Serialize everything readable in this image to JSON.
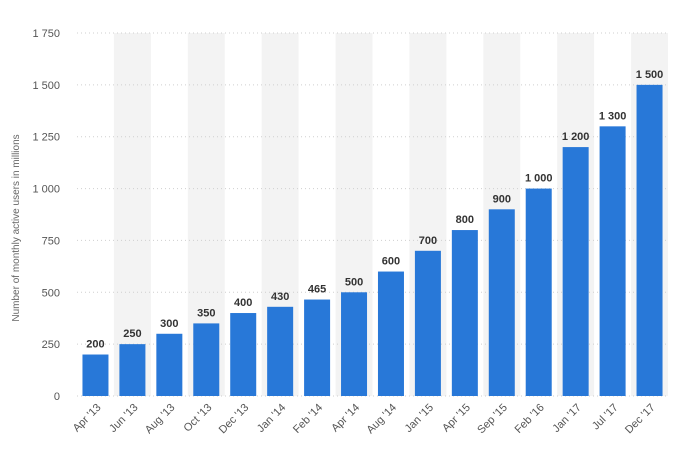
{
  "chart_data": {
    "type": "bar",
    "categories": [
      "Apr '13",
      "Jun '13",
      "Aug '13",
      "Oct '13",
      "Dec '13",
      "Jan '14",
      "Feb '14",
      "Apr '14",
      "Aug '14",
      "Jan '15",
      "Apr '15",
      "Sep '15",
      "Feb '16",
      "Jan '17",
      "Jul '17",
      "Dec '17"
    ],
    "values": [
      200,
      250,
      300,
      350,
      400,
      430,
      465,
      500,
      600,
      700,
      800,
      900,
      1000,
      1200,
      1300,
      1500
    ],
    "value_labels": [
      "200",
      "250",
      "300",
      "350",
      "400",
      "430",
      "465",
      "500",
      "600",
      "700",
      "800",
      "900",
      "1 000",
      "1 200",
      "1 300",
      "1 500"
    ],
    "title": "",
    "xlabel": "",
    "ylabel": "Number of monthly active users in millions",
    "ylim": [
      0,
      1750
    ],
    "yticks": [
      0,
      250,
      500,
      750,
      1000,
      1250,
      1500,
      1750
    ],
    "ytick_labels": [
      "0",
      "250",
      "500",
      "750",
      "1 000",
      "1 250",
      "1 500",
      "1 750"
    ],
    "grid": true,
    "bar_color": "#2878d8"
  }
}
